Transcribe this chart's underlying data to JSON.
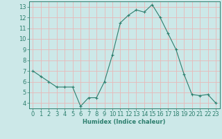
{
  "x": [
    0,
    1,
    2,
    3,
    4,
    5,
    6,
    7,
    8,
    9,
    10,
    11,
    12,
    13,
    14,
    15,
    16,
    17,
    18,
    19,
    20,
    21,
    22,
    23
  ],
  "y": [
    7.0,
    6.5,
    6.0,
    5.5,
    5.5,
    5.5,
    3.7,
    4.5,
    4.5,
    6.0,
    8.5,
    11.5,
    12.2,
    12.7,
    12.5,
    13.2,
    12.0,
    10.5,
    9.0,
    6.7,
    4.8,
    4.7,
    4.8,
    4.0
  ],
  "xlabel": "Humidex (Indice chaleur)",
  "ylim": [
    3.5,
    13.5
  ],
  "xlim": [
    -0.5,
    23.5
  ],
  "yticks": [
    4,
    5,
    6,
    7,
    8,
    9,
    10,
    11,
    12,
    13
  ],
  "xtick_labels": [
    "0",
    "1",
    "2",
    "3",
    "4",
    "5",
    "6",
    "7",
    "8",
    "9",
    "10",
    "11",
    "12",
    "13",
    "14",
    "15",
    "16",
    "17",
    "18",
    "19",
    "20",
    "21",
    "22",
    "23"
  ],
  "line_color": "#2d7f6e",
  "marker_color": "#2d7f6e",
  "bg_color": "#cce8e8",
  "grid_color": "#e8b8b8",
  "label_fontsize": 6,
  "tick_fontsize": 6
}
